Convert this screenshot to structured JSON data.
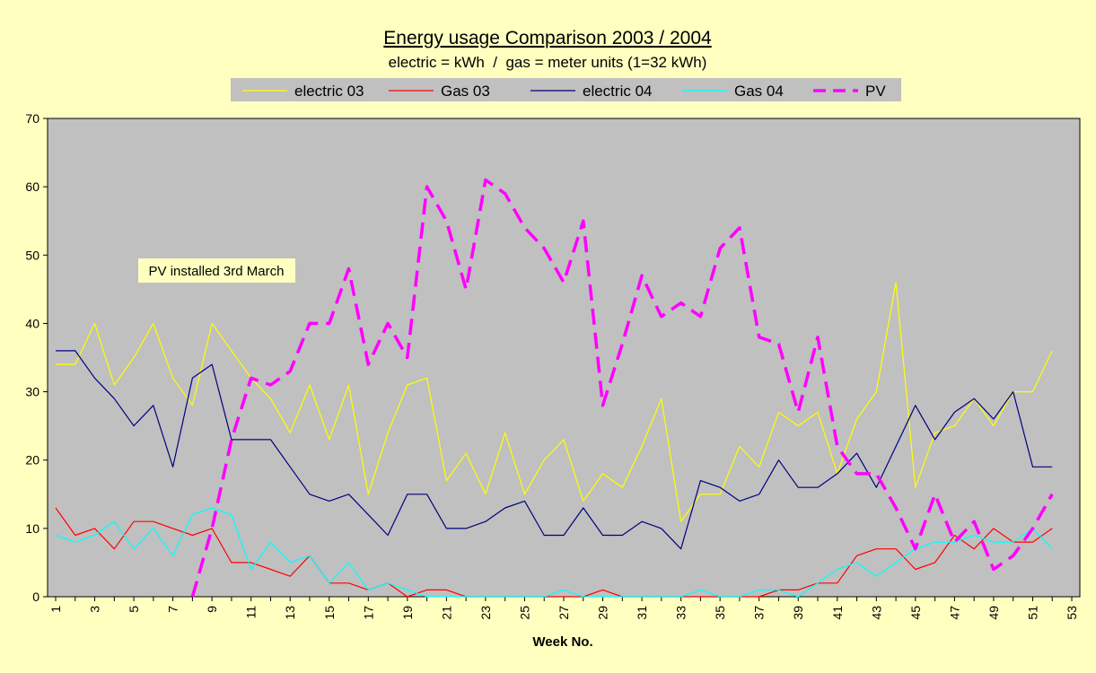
{
  "chart_data": {
    "type": "line",
    "title": "Energy usage Comparison 2003 / 2004",
    "subtitle": "electric = kWh  /  gas = meter units (1=32 kWh)",
    "xlabel": "Week No.",
    "ylabel": "",
    "ylim": [
      0,
      70
    ],
    "yticks": [
      0,
      10,
      20,
      30,
      40,
      50,
      60,
      70
    ],
    "xlim": [
      1,
      53
    ],
    "xtick_labels": [
      "1",
      "3",
      "5",
      "7",
      "9",
      "11",
      "13",
      "15",
      "17",
      "19",
      "21",
      "23",
      "25",
      "27",
      "29",
      "31",
      "33",
      "35",
      "37",
      "39",
      "41",
      "43",
      "45",
      "47",
      "49",
      "51",
      "53"
    ],
    "grid": false,
    "legend_position": "top",
    "annotation": "PV installed 3rd March",
    "colors": {
      "background": "#ffffc0",
      "plot_area": "#c0c0c0",
      "legend_box": "#c0c0c0"
    },
    "series": [
      {
        "name": "electric 03",
        "color": "#ffff00",
        "style": "solid",
        "x": [
          1,
          2,
          3,
          4,
          5,
          6,
          7,
          8,
          9,
          10,
          11,
          12,
          13,
          14,
          15,
          16,
          17,
          18,
          19,
          20,
          21,
          22,
          23,
          24,
          25,
          26,
          27,
          28,
          29,
          30,
          31,
          32,
          33,
          34,
          35,
          36,
          37,
          38,
          39,
          40,
          41,
          42,
          43,
          44,
          45,
          46,
          47,
          48,
          49,
          50,
          51,
          52
        ],
        "values": [
          34,
          34,
          40,
          31,
          35,
          40,
          32,
          28,
          40,
          36,
          32,
          29,
          24,
          31,
          23,
          31,
          15,
          24,
          31,
          32,
          17,
          21,
          15,
          24,
          15,
          20,
          23,
          14,
          18,
          16,
          22,
          29,
          11,
          15,
          15,
          22,
          19,
          27,
          25,
          27,
          18,
          26,
          30,
          46,
          16,
          24,
          25,
          29,
          25,
          30,
          30,
          36
        ]
      },
      {
        "name": "Gas 03",
        "color": "#ff0000",
        "style": "solid",
        "x": [
          1,
          2,
          3,
          4,
          5,
          6,
          7,
          8,
          9,
          10,
          11,
          12,
          13,
          14,
          15,
          16,
          17,
          18,
          19,
          20,
          21,
          22,
          23,
          24,
          25,
          26,
          27,
          28,
          29,
          30,
          31,
          32,
          33,
          34,
          35,
          36,
          37,
          38,
          39,
          40,
          41,
          42,
          43,
          44,
          45,
          46,
          47,
          48,
          49,
          50,
          51,
          52
        ],
        "values": [
          13,
          9,
          10,
          7,
          11,
          11,
          10,
          9,
          10,
          5,
          5,
          4,
          3,
          6,
          2,
          2,
          1,
          2,
          0,
          1,
          1,
          0,
          0,
          0,
          0,
          0,
          0,
          0,
          1,
          0,
          0,
          0,
          0,
          0,
          0,
          0,
          0,
          1,
          1,
          2,
          2,
          6,
          7,
          7,
          4,
          5,
          9,
          7,
          10,
          8,
          8,
          10
        ]
      },
      {
        "name": "electric 04",
        "color": "#000080",
        "style": "solid",
        "x": [
          1,
          2,
          3,
          4,
          5,
          6,
          7,
          8,
          9,
          10,
          11,
          12,
          13,
          14,
          15,
          16,
          17,
          18,
          19,
          20,
          21,
          22,
          23,
          24,
          25,
          26,
          27,
          28,
          29,
          30,
          31,
          32,
          33,
          34,
          35,
          36,
          37,
          38,
          39,
          40,
          41,
          42,
          43,
          44,
          45,
          46,
          47,
          48,
          49,
          50,
          51,
          52
        ],
        "values": [
          36,
          36,
          32,
          29,
          25,
          28,
          19,
          32,
          34,
          23,
          23,
          23,
          19,
          15,
          14,
          15,
          12,
          9,
          15,
          15,
          10,
          10,
          11,
          13,
          14,
          9,
          9,
          13,
          9,
          9,
          11,
          10,
          7,
          17,
          16,
          14,
          15,
          20,
          16,
          16,
          18,
          21,
          16,
          22,
          28,
          23,
          27,
          29,
          26,
          30,
          19,
          19
        ]
      },
      {
        "name": "Gas 04",
        "color": "#00ffff",
        "style": "solid",
        "x": [
          1,
          2,
          3,
          4,
          5,
          6,
          7,
          8,
          9,
          10,
          11,
          12,
          13,
          14,
          15,
          16,
          17,
          18,
          19,
          20,
          21,
          22,
          23,
          24,
          25,
          26,
          27,
          28,
          29,
          30,
          31,
          32,
          33,
          34,
          35,
          36,
          37,
          38,
          39,
          40,
          41,
          42,
          43,
          44,
          45,
          46,
          47,
          48,
          49,
          50,
          51,
          52
        ],
        "values": [
          9,
          8,
          9,
          11,
          7,
          10,
          6,
          12,
          13,
          12,
          4,
          8,
          5,
          6,
          2,
          5,
          1,
          2,
          1,
          0,
          0,
          0,
          0,
          0,
          0,
          0,
          1,
          0,
          0,
          0,
          0,
          0,
          0,
          1,
          0,
          0,
          1,
          1,
          0,
          2,
          4,
          5,
          3,
          5,
          7,
          8,
          8,
          9,
          8,
          8,
          10,
          7
        ]
      },
      {
        "name": "PV",
        "color": "#ff00ff",
        "style": "dashed",
        "x": [
          8,
          9,
          10,
          11,
          12,
          13,
          14,
          15,
          16,
          17,
          18,
          19,
          20,
          21,
          22,
          23,
          24,
          25,
          26,
          27,
          28,
          29,
          30,
          31,
          32,
          33,
          34,
          35,
          36,
          37,
          38,
          39,
          40,
          41,
          42,
          43,
          44,
          45,
          46,
          47,
          48,
          49,
          50,
          51,
          52
        ],
        "values": [
          0,
          10,
          23,
          32,
          31,
          33,
          40,
          40,
          48,
          34,
          40,
          35,
          60,
          55,
          45,
          61,
          59,
          54,
          51,
          46,
          55,
          28,
          37,
          47,
          41,
          43,
          41,
          51,
          54,
          38,
          37,
          27,
          38,
          22,
          18,
          18,
          13,
          7,
          15,
          8,
          11,
          4,
          6,
          10,
          15
        ]
      }
    ]
  }
}
